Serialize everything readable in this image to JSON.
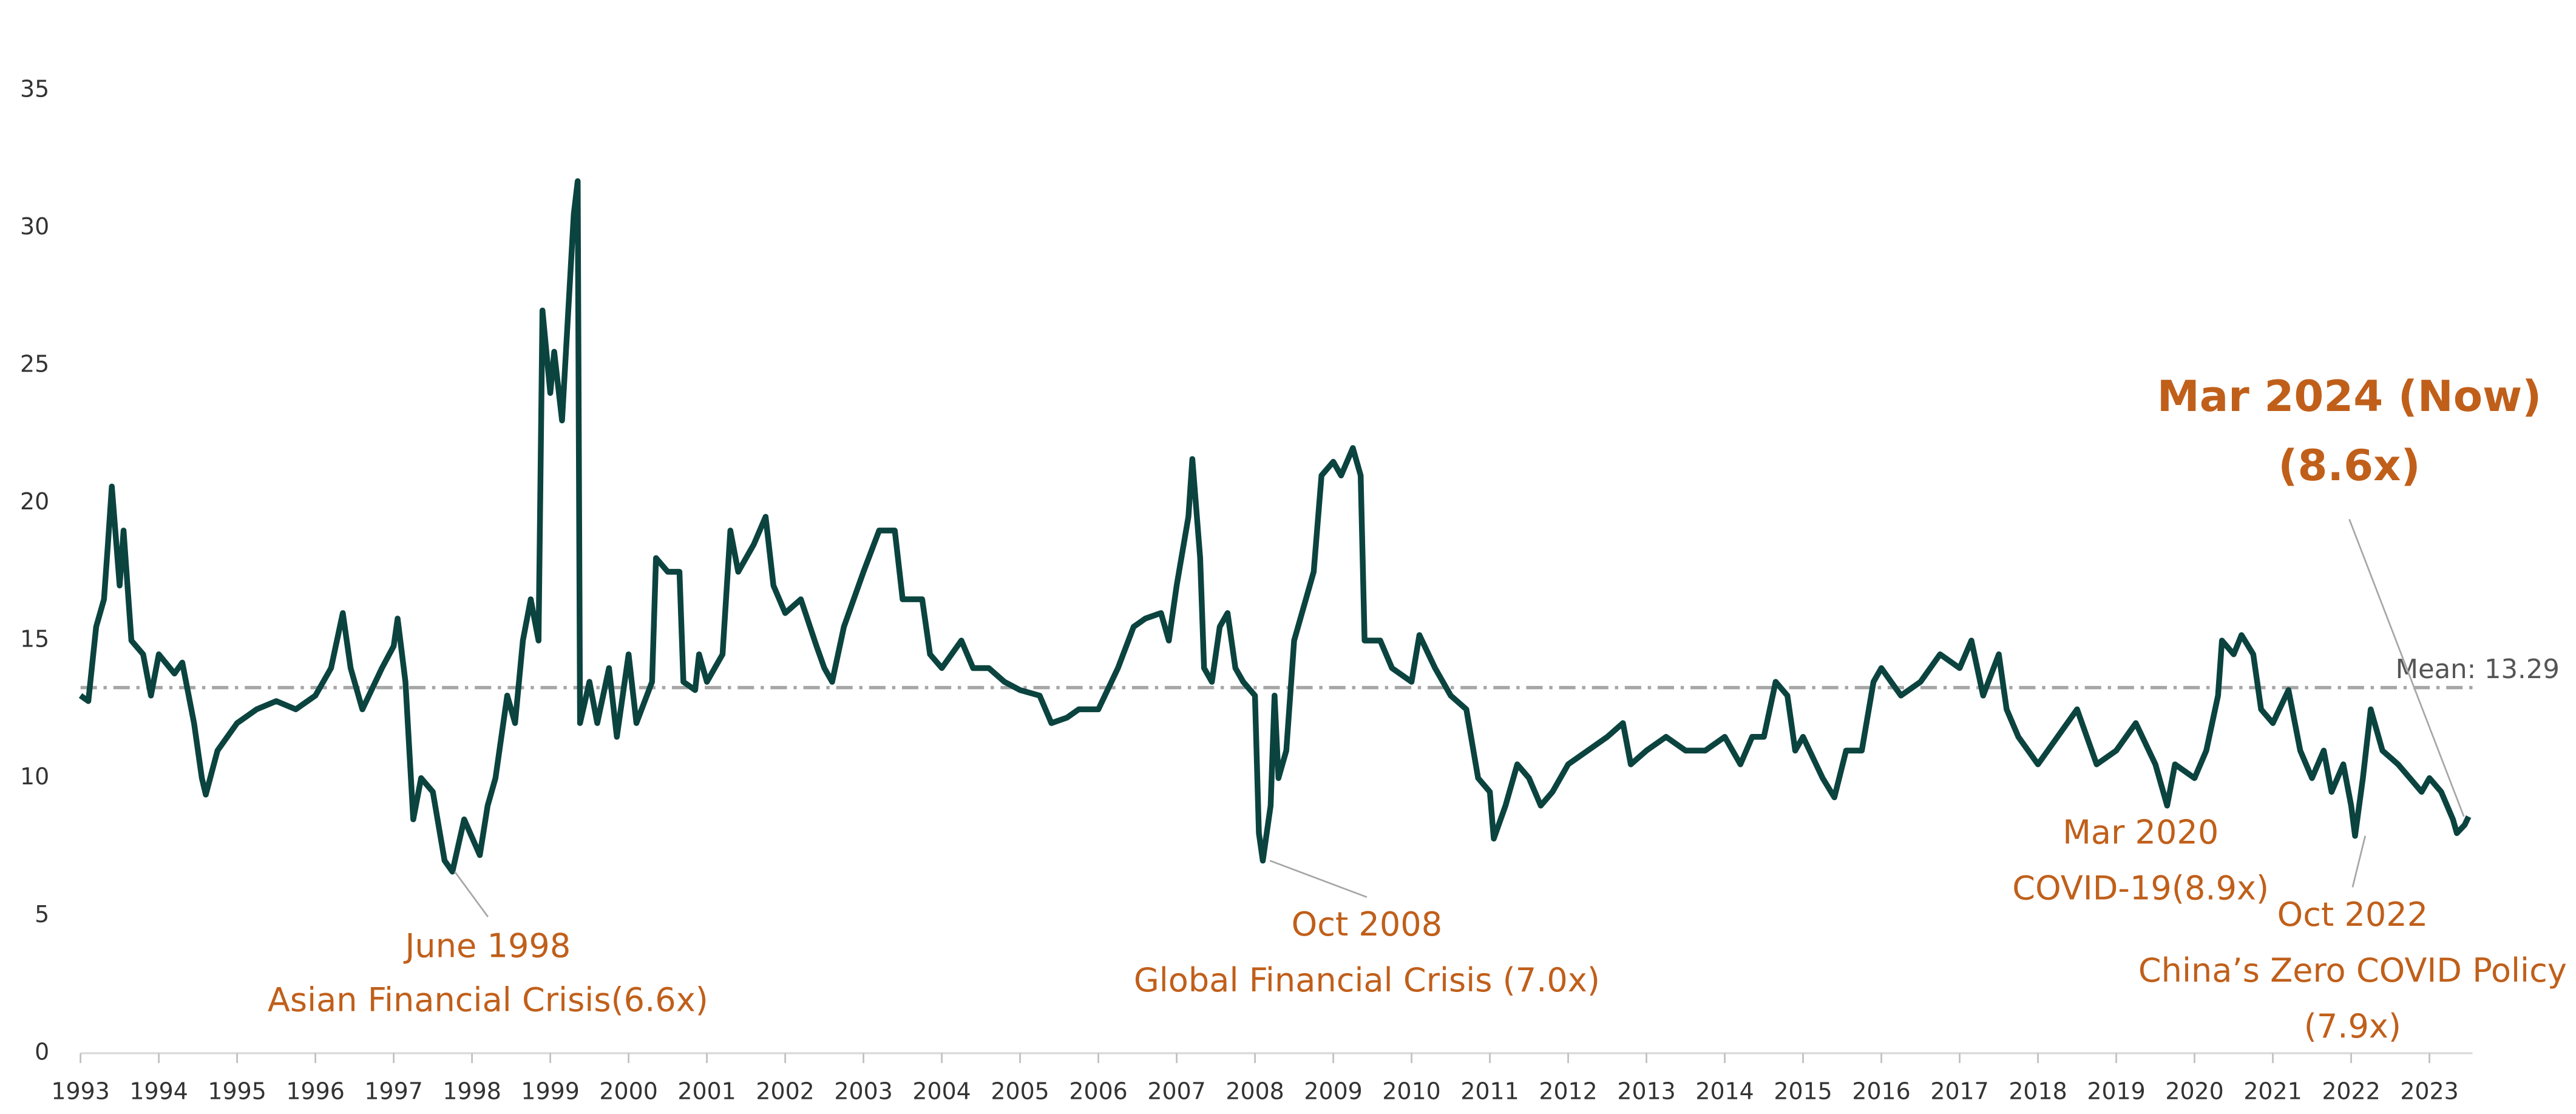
{
  "chart_data": {
    "type": "line",
    "color": "#0b433f",
    "x": [
      1993.0,
      1993.1,
      1993.2,
      1993.3,
      1993.35,
      1993.4,
      1993.5,
      1993.55,
      1993.65,
      1993.8,
      1993.9,
      1994.0,
      1994.2,
      1994.3,
      1994.45,
      1994.55,
      1994.6,
      1994.75,
      1995.0,
      1995.25,
      1995.5,
      1995.75,
      1996.0,
      1996.2,
      1996.35,
      1996.45,
      1996.6,
      1996.85,
      1997.0,
      1997.05,
      1997.15,
      1997.25,
      1997.35,
      1997.5,
      1997.65,
      1997.75,
      1997.9,
      1998.1,
      1998.2,
      1998.3,
      1998.45,
      1998.55,
      1998.65,
      1998.75,
      1998.85,
      1998.9,
      1999.0,
      1999.05,
      1999.15,
      1999.25,
      1999.3,
      1999.35,
      1999.38,
      1999.5,
      1999.6,
      1999.75,
      1999.85,
      2000.0,
      2000.1,
      2000.3,
      2000.35,
      2000.5,
      2000.65,
      2000.7,
      2000.85,
      2000.9,
      2001.0,
      2001.2,
      2001.3,
      2001.4,
      2001.6,
      2001.75,
      2001.85,
      2002.0,
      2002.2,
      2002.4,
      2002.5,
      2002.6,
      2002.75,
      2003.0,
      2003.2,
      2003.4,
      2003.5,
      2003.75,
      2003.85,
      2004.0,
      2004.25,
      2004.4,
      2004.6,
      2004.8,
      2005.0,
      2005.25,
      2005.4,
      2005.6,
      2005.75,
      2006.0,
      2006.25,
      2006.45,
      2006.6,
      2006.8,
      2006.9,
      2007.0,
      2007.15,
      2007.2,
      2007.3,
      2007.35,
      2007.45,
      2007.55,
      2007.65,
      2007.75,
      2007.85,
      2008.0,
      2008.05,
      2008.1,
      2008.2,
      2008.25,
      2008.3,
      2008.4,
      2008.5,
      2008.6,
      2008.75,
      2008.85,
      2009.0,
      2009.1,
      2009.25,
      2009.35,
      2009.4,
      2009.6,
      2009.75,
      2010.0,
      2010.1,
      2010.3,
      2010.5,
      2010.7,
      2010.85,
      2011.0,
      2011.05,
      2011.2,
      2011.35,
      2011.5,
      2011.65,
      2011.8,
      2012.0,
      2012.25,
      2012.5,
      2012.7,
      2012.8,
      2013.0,
      2013.25,
      2013.5,
      2013.75,
      2014.0,
      2014.2,
      2014.35,
      2014.5,
      2014.65,
      2014.8,
      2014.9,
      2015.0,
      2015.25,
      2015.4,
      2015.55,
      2015.75,
      2015.9,
      2016.0,
      2016.25,
      2016.5,
      2016.75,
      2017.0,
      2017.15,
      2017.3,
      2017.5,
      2017.6,
      2017.75,
      2018.0,
      2018.25,
      2018.5,
      2018.75,
      2019.0,
      2019.25,
      2019.5,
      2019.65,
      2019.75,
      2020.0,
      2020.15,
      2020.3,
      2020.35,
      2020.5,
      2020.6,
      2020.75,
      2020.85,
      2021.0,
      2021.2,
      2021.35,
      2021.5,
      2021.65,
      2021.75,
      2021.9,
      2022.0,
      2022.05,
      2022.15,
      2022.25,
      2022.4,
      2022.6,
      2022.75,
      2022.9,
      2023.0,
      2023.15,
      2023.3,
      2023.35,
      2023.45,
      2023.5
    ],
    "values": [
      13.0,
      12.8,
      15.5,
      16.5,
      18.5,
      20.6,
      17,
      19,
      15,
      14.5,
      13,
      14.5,
      13.8,
      14.2,
      12,
      10,
      9.4,
      11,
      12,
      12.5,
      12.8,
      12.5,
      13,
      14,
      16,
      14,
      12.5,
      14,
      14.8,
      15.8,
      13.5,
      8.5,
      10,
      9.5,
      7,
      6.6,
      8.5,
      7.2,
      9,
      10,
      13,
      12,
      15,
      16.5,
      15,
      27,
      24,
      25.5,
      23,
      28,
      30.5,
      31.7,
      12,
      13.5,
      12,
      14,
      11.5,
      14.5,
      12,
      13.5,
      18,
      17.5,
      17.5,
      13.5,
      13.2,
      14.5,
      13.5,
      14.5,
      19,
      17.5,
      18.5,
      19.5,
      17,
      16,
      16.5,
      14.8,
      14,
      13.5,
      15.5,
      17.5,
      19,
      19,
      16.5,
      16.5,
      14.5,
      14,
      15,
      14,
      14,
      13.5,
      13.2,
      13,
      12,
      12.2,
      12.5,
      12.5,
      14,
      15.5,
      15.8,
      16,
      15,
      17,
      19.5,
      21.6,
      18,
      14,
      13.5,
      15.5,
      16,
      14,
      13.5,
      13,
      8,
      7.0,
      9,
      13,
      10,
      11,
      15,
      16,
      17.5,
      21,
      21.5,
      21,
      22,
      21,
      15,
      15,
      14,
      13.5,
      15.2,
      14,
      13,
      12.5,
      10,
      9.5,
      7.8,
      9,
      10.5,
      10,
      9,
      9.5,
      10.5,
      11,
      11.5,
      12,
      10.5,
      11,
      11.5,
      11,
      11,
      11.5,
      10.5,
      11.5,
      11.5,
      13.5,
      13,
      11,
      11.5,
      10,
      9.3,
      11,
      11,
      13.5,
      14,
      13,
      13.5,
      14.5,
      14,
      15,
      13,
      14.5,
      12.5,
      11.5,
      10.5,
      11.5,
      12.5,
      10.5,
      11,
      12,
      10.5,
      9,
      10.5,
      10,
      11,
      13,
      15,
      14.5,
      15.2,
      14.5,
      12.5,
      12,
      13.2,
      11,
      10,
      11,
      9.5,
      10.5,
      9,
      7.9,
      10,
      12.5,
      11,
      10.5,
      10,
      9.5,
      10,
      9.5,
      8.5,
      8,
      8.3,
      8.6
    ],
    "xlim": [
      1993,
      2023.55
    ],
    "xticks": [
      1993,
      1994,
      1995,
      1996,
      1997,
      1998,
      1999,
      2000,
      2001,
      2002,
      2003,
      2004,
      2005,
      2006,
      2007,
      2008,
      2009,
      2010,
      2011,
      2012,
      2013,
      2014,
      2015,
      2016,
      2017,
      2018,
      2019,
      2020,
      2021,
      2022,
      2023
    ],
    "ylim": [
      0,
      35
    ],
    "yticks": [
      0,
      5,
      10,
      15,
      20,
      25,
      30,
      35
    ],
    "mean_line": {
      "value": 13.29,
      "label": "Mean: 13.29"
    },
    "annotation_color": "#c05f1a",
    "annotations": [
      {
        "lines": [
          "June 1998",
          "Asian Financial Crisis(6.6x)"
        ],
        "x": 1997.78,
        "y": 6.6
      },
      {
        "lines": [
          "Oct 2008",
          "Global Financial Crisis (7.0x)"
        ],
        "x": 2008.19,
        "y": 7.0
      },
      {
        "lines": [
          "Mar 2020",
          "COVID-19(8.9x)"
        ]
      },
      {
        "lines": [
          "Oct 2022",
          "China’s Zero COVID Policy",
          "(7.9x)"
        ],
        "x": 2022.18,
        "y": 7.9
      },
      {
        "lines": [
          "Mar 2024 (Now)",
          "(8.6x)"
        ],
        "x": 2023.44,
        "y": 8.6
      }
    ]
  }
}
